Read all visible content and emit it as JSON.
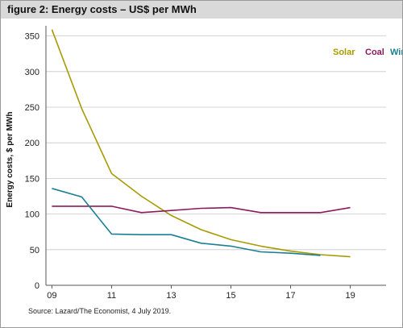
{
  "header": {
    "title": "figure 2: Energy costs – US$ per MWh"
  },
  "footer": {
    "source": "Source: Lazard/The Economist, 4 July 2019."
  },
  "chart_data": {
    "type": "line",
    "title": "figure 2: Energy costs – US$ per MWh",
    "xlabel": "",
    "ylabel": "Energy costs, $ per MWh",
    "x": [
      9,
      10,
      11,
      12,
      13,
      14,
      15,
      16,
      17,
      18,
      19
    ],
    "x_ticks": [
      9,
      11,
      13,
      15,
      17,
      19
    ],
    "x_tick_labels": [
      "09",
      "11",
      "13",
      "15",
      "17",
      "19"
    ],
    "y_ticks": [
      0,
      50,
      100,
      150,
      200,
      250,
      300,
      350
    ],
    "xlim": [
      8.8,
      20.2
    ],
    "ylim": [
      0,
      362
    ],
    "grid": "horizontal",
    "legend_position": "top-right",
    "series": [
      {
        "name": "Solar",
        "color": "#a89b00",
        "values": [
          359,
          248,
          157,
          125,
          98,
          78,
          64,
          55,
          48,
          43,
          40
        ]
      },
      {
        "name": "Coal",
        "color": "#8c1a5e",
        "values": [
          111,
          111,
          111,
          102,
          105,
          108,
          109,
          102,
          102,
          102,
          109
        ]
      },
      {
        "name": "Wind",
        "color": "#1a7f93",
        "values": [
          136,
          124,
          72,
          71,
          71,
          59,
          55,
          47,
          45,
          42,
          null
        ]
      }
    ]
  }
}
